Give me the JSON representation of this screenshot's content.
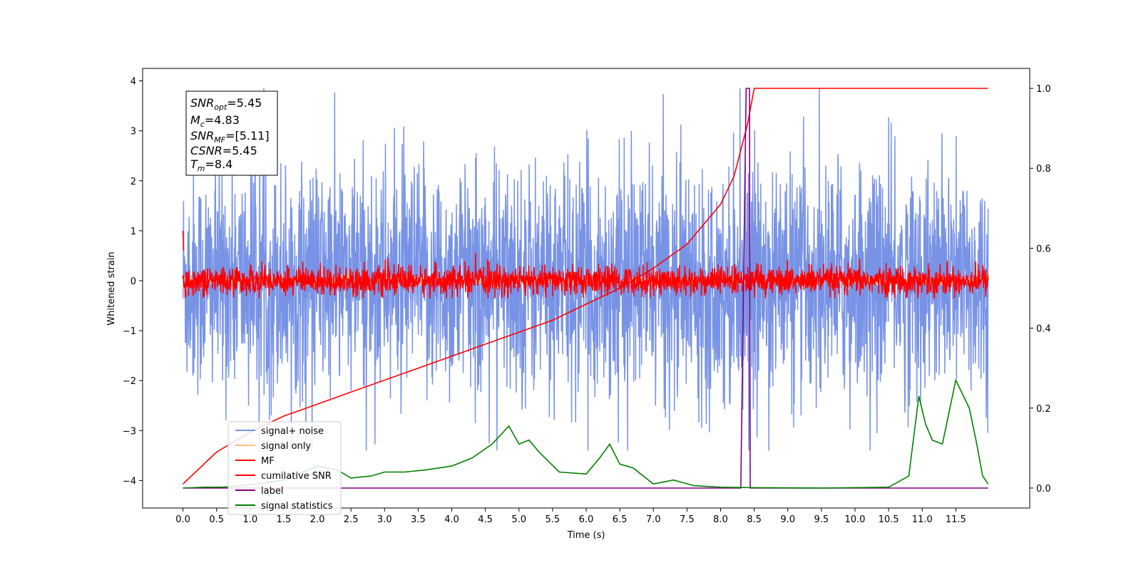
{
  "chart_data": {
    "type": "line",
    "xlabel": "Time (s)",
    "ylabel": "Whitened strain",
    "xlim": [
      -0.6,
      12.6
    ],
    "ylim": [
      -4.55,
      4.25
    ],
    "ylim_right": [
      -0.05,
      1.05
    ],
    "x_ticks": [
      "0.0",
      "0.5",
      "1.0",
      "1.5",
      "2.0",
      "2.5",
      "3.0",
      "3.5",
      "4.0",
      "4.5",
      "5.0",
      "5.5",
      "6.0",
      "6.5",
      "7.0",
      "7.5",
      "8.0",
      "8.5",
      "9.0",
      "9.5",
      "10.0",
      "10.5",
      "11.0",
      "11.5"
    ],
    "y_ticks_left": [
      "4",
      "3",
      "2",
      "1",
      "0",
      "−1",
      "−2",
      "−3",
      "−4"
    ],
    "y_ticks_right": [
      "1.0",
      "0.8",
      "0.6",
      "0.4",
      "0.2",
      "0.0"
    ],
    "legend_position": "lower-left",
    "annotation": {
      "line1": "=5.45",
      "line1_base": "SNR",
      "line1_sub": "opt",
      "line2": "=4.83",
      "line2_base": "M",
      "line2_sub": "c",
      "line3": "=[5.11]",
      "line3_base": "SNR",
      "line3_sub": "MF",
      "line4": "=5.45",
      "line4_base": "CSNR",
      "line5": "=8.4",
      "line5_base": "T",
      "line5_sub": "m"
    },
    "series": [
      {
        "name": "signal+ noise",
        "color": "#7893e6",
        "axis": "left",
        "description_range": [
          -3.4,
          3.85
        ],
        "x_range": [
          0,
          11.98
        ]
      },
      {
        "name": "signal only",
        "color": "#ffbf7f",
        "axis": "left",
        "x_range": [
          0,
          11.98
        ]
      },
      {
        "name": "MF",
        "color": "#ff0000",
        "axis": "left",
        "description_range": [
          -0.35,
          0.9
        ],
        "x_range": [
          0,
          11.98
        ]
      },
      {
        "name": "cumilative SNR",
        "color": "#ff0000",
        "axis": "right",
        "points": [
          [
            0,
            0.01
          ],
          [
            0.5,
            0.09
          ],
          [
            1.0,
            0.14
          ],
          [
            1.5,
            0.18
          ],
          [
            2.0,
            0.21
          ],
          [
            2.5,
            0.24
          ],
          [
            3.0,
            0.27
          ],
          [
            3.5,
            0.3
          ],
          [
            4.0,
            0.33
          ],
          [
            4.5,
            0.36
          ],
          [
            5.0,
            0.39
          ],
          [
            5.5,
            0.42
          ],
          [
            6.0,
            0.46
          ],
          [
            6.5,
            0.5
          ],
          [
            7.0,
            0.55
          ],
          [
            7.5,
            0.61
          ],
          [
            8.0,
            0.71
          ],
          [
            8.2,
            0.78
          ],
          [
            8.4,
            0.91
          ],
          [
            8.5,
            1.0
          ],
          [
            11.98,
            1.0
          ]
        ]
      },
      {
        "name": "label",
        "color": "#800080",
        "axis": "right",
        "points": [
          [
            0,
            0.0
          ],
          [
            8.3,
            0.0
          ],
          [
            8.38,
            1.0
          ],
          [
            8.43,
            1.0
          ],
          [
            8.44,
            0.0
          ],
          [
            11.98,
            0.0
          ]
        ]
      },
      {
        "name": "signal statistics",
        "color": "#008000",
        "axis": "right",
        "points": [
          [
            0,
            0.0
          ],
          [
            0.3,
            0.002
          ],
          [
            0.6,
            0.002
          ],
          [
            1.0,
            0.008
          ],
          [
            1.5,
            0.02
          ],
          [
            2.0,
            0.055
          ],
          [
            2.3,
            0.045
          ],
          [
            2.5,
            0.025
          ],
          [
            2.8,
            0.03
          ],
          [
            3.0,
            0.04
          ],
          [
            3.3,
            0.04
          ],
          [
            3.6,
            0.045
          ],
          [
            4.0,
            0.055
          ],
          [
            4.3,
            0.075
          ],
          [
            4.6,
            0.11
          ],
          [
            4.85,
            0.155
          ],
          [
            5.0,
            0.11
          ],
          [
            5.15,
            0.12
          ],
          [
            5.3,
            0.09
          ],
          [
            5.6,
            0.04
          ],
          [
            6.0,
            0.035
          ],
          [
            6.2,
            0.075
          ],
          [
            6.35,
            0.11
          ],
          [
            6.5,
            0.06
          ],
          [
            6.7,
            0.05
          ],
          [
            7.0,
            0.01
          ],
          [
            7.3,
            0.02
          ],
          [
            7.6,
            0.006
          ],
          [
            8.0,
            0.002
          ],
          [
            8.5,
            0.001
          ],
          [
            9.5,
            0.0
          ],
          [
            10.5,
            0.002
          ],
          [
            10.8,
            0.03
          ],
          [
            10.95,
            0.23
          ],
          [
            11.05,
            0.16
          ],
          [
            11.15,
            0.12
          ],
          [
            11.3,
            0.11
          ],
          [
            11.5,
            0.27
          ],
          [
            11.7,
            0.2
          ],
          [
            11.8,
            0.12
          ],
          [
            11.9,
            0.03
          ],
          [
            11.98,
            0.01
          ]
        ]
      }
    ]
  }
}
